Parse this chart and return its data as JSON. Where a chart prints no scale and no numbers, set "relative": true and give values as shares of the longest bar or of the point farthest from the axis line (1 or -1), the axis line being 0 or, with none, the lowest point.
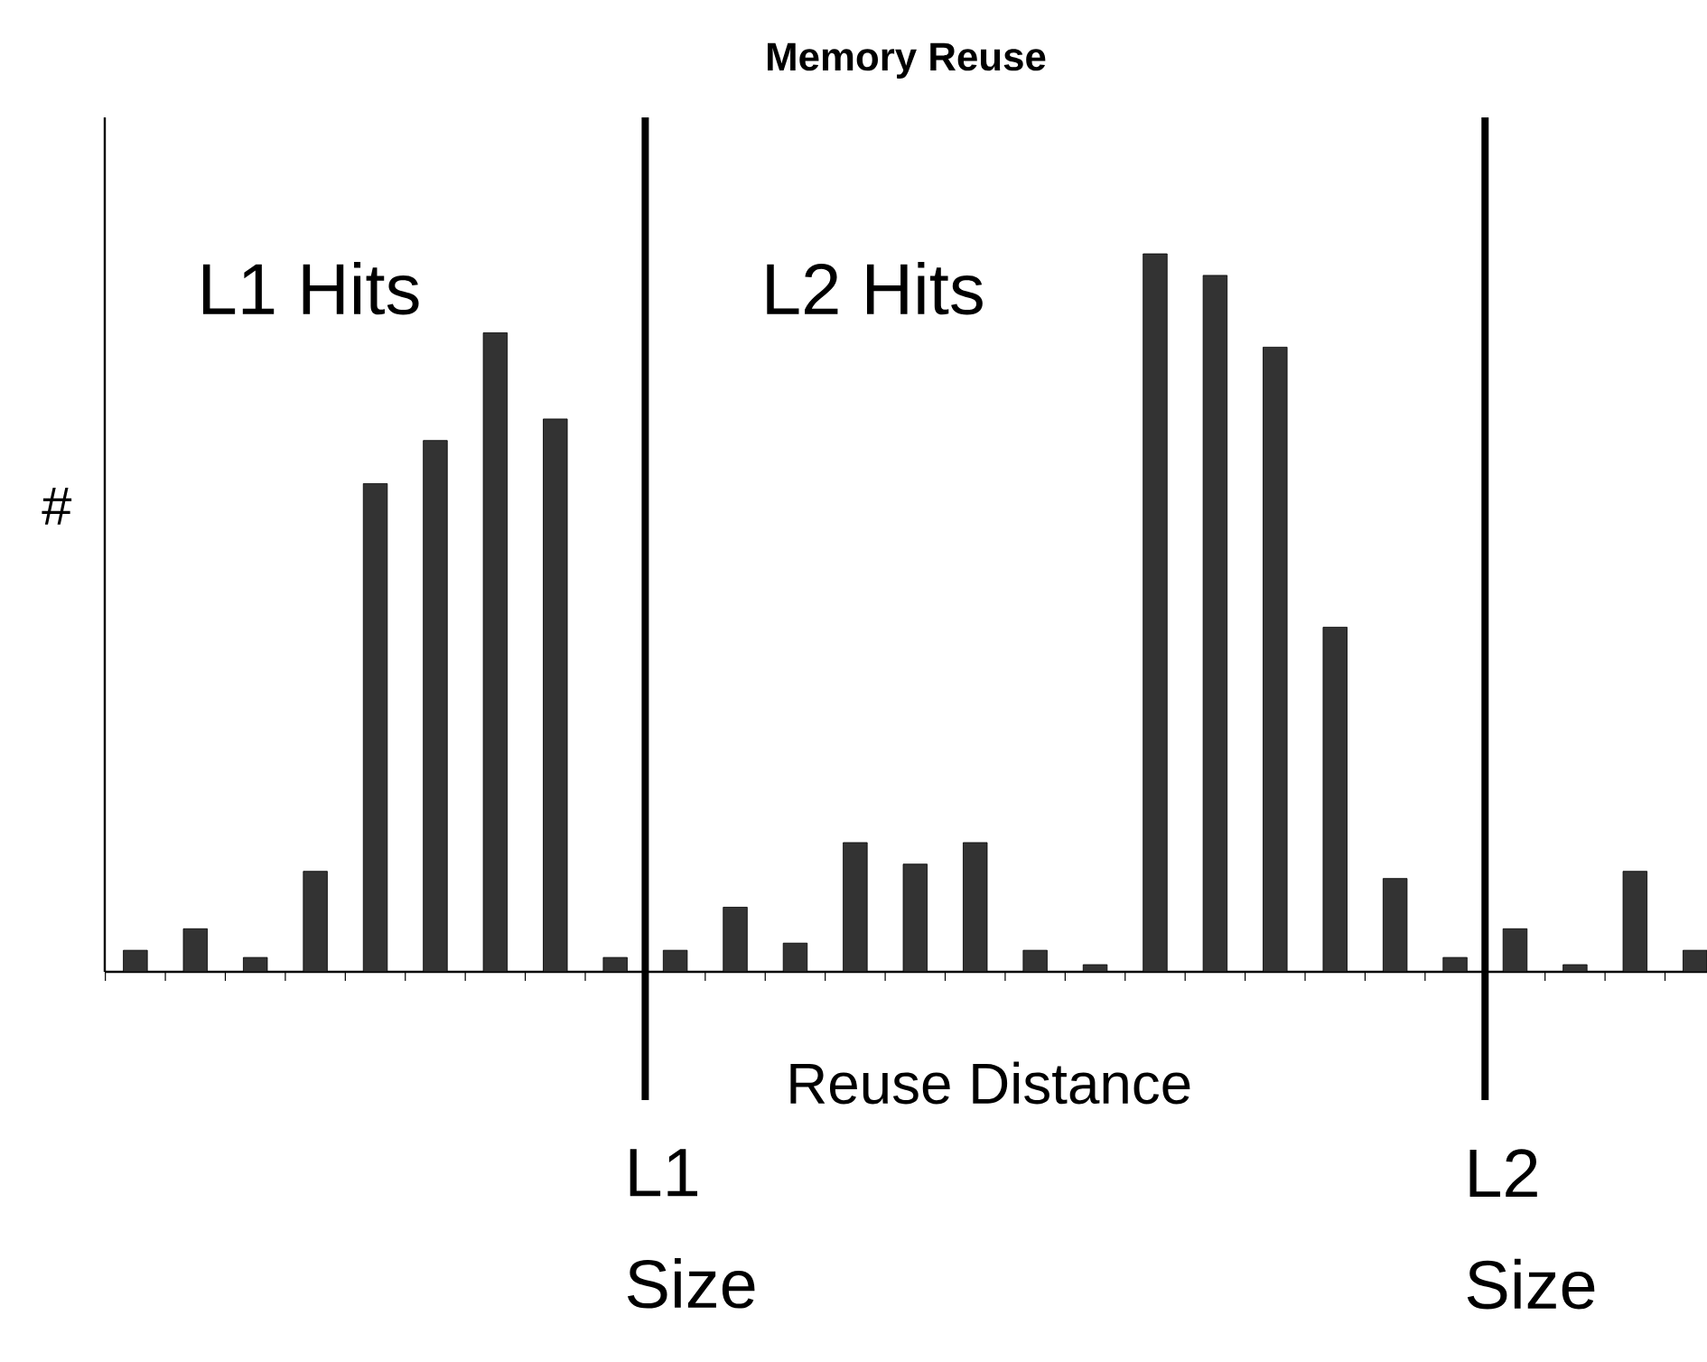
{
  "chart_data": {
    "type": "bar",
    "title": "Memory Reuse",
    "xlabel": "Reuse Distance",
    "ylabel": "#",
    "relative": true,
    "categories": [
      null,
      null,
      null,
      null,
      null,
      null,
      null,
      null,
      null,
      null,
      null,
      null,
      null,
      null,
      null,
      null,
      null,
      null,
      null,
      null,
      null,
      null,
      null,
      null,
      null,
      null,
      null
    ],
    "values": [
      0.03,
      0.06,
      0.02,
      0.14,
      0.68,
      0.74,
      0.89,
      0.77,
      0.02,
      0.03,
      0.09,
      0.04,
      0.18,
      0.15,
      0.18,
      0.03,
      0.01,
      1,
      0.97,
      0.87,
      0.48,
      0.13,
      0.02,
      0.06,
      0.01,
      0.14,
      0.03
    ],
    "color": "#333333",
    "annotations": [
      "L1 Hits",
      "L2 Hits",
      "L1 Size",
      "L2 Size"
    ]
  }
}
